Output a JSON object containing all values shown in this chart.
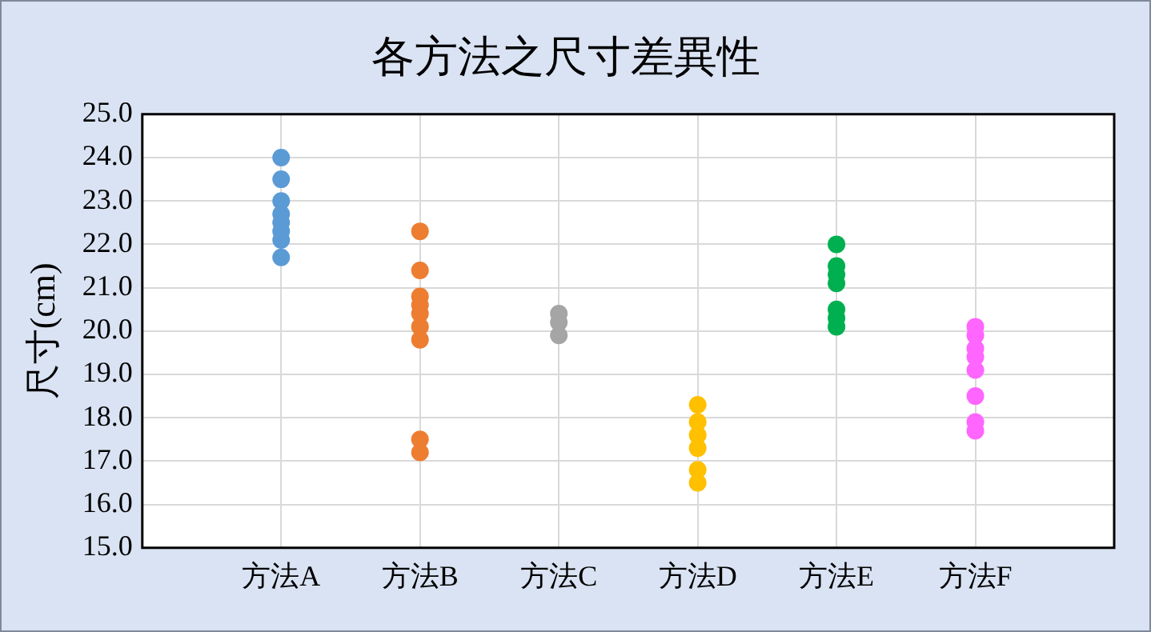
{
  "chart_data": {
    "type": "scatter",
    "title": "各方法之尺寸差異性",
    "ylabel": "尺寸(cm)",
    "categories": [
      "方法A",
      "方法B",
      "方法C",
      "方法D",
      "方法E",
      "方法F"
    ],
    "series": [
      {
        "color": "#5b9bd5",
        "x": [
          "方法A",
          "方法A",
          "方法A",
          "方法A",
          "方法A",
          "方法A",
          "方法A",
          "方法A"
        ],
        "values": [
          24.0,
          23.5,
          23.0,
          22.7,
          22.5,
          22.3,
          22.1,
          21.7
        ]
      },
      {
        "color": "#ed7d31",
        "x": [
          "方法B",
          "方法B",
          "方法B",
          "方法B",
          "方法B",
          "方法B",
          "方法B",
          "方法B",
          "方法B"
        ],
        "values": [
          22.3,
          21.4,
          20.8,
          20.6,
          20.4,
          20.1,
          19.8,
          17.5,
          17.2
        ]
      },
      {
        "color": "#a5a5a5",
        "x": [
          "方法C",
          "方法C",
          "方法C"
        ],
        "values": [
          20.4,
          20.2,
          19.9
        ]
      },
      {
        "color": "#ffc000",
        "x": [
          "方法D",
          "方法D",
          "方法D",
          "方法D",
          "方法D",
          "方法D"
        ],
        "values": [
          18.3,
          17.9,
          17.6,
          17.3,
          16.8,
          16.5
        ]
      },
      {
        "color": "#00b050",
        "x": [
          "方法E",
          "方法E",
          "方法E",
          "方法E",
          "方法E",
          "方法E",
          "方法E"
        ],
        "values": [
          22.0,
          21.5,
          21.3,
          21.1,
          20.5,
          20.3,
          20.1
        ]
      },
      {
        "color": "#ff66ff",
        "x": [
          "方法F",
          "方法F",
          "方法F",
          "方法F",
          "方法F",
          "方法F",
          "方法F",
          "方法F"
        ],
        "values": [
          20.1,
          19.9,
          19.6,
          19.4,
          19.1,
          18.5,
          17.9,
          17.7
        ]
      }
    ],
    "ylim": [
      15,
      25
    ],
    "yticks": [
      {
        "value": 15,
        "label": "15.0"
      },
      {
        "value": 16,
        "label": "16.0"
      },
      {
        "value": 17,
        "label": "17.0"
      },
      {
        "value": 18,
        "label": "18.0"
      },
      {
        "value": 19,
        "label": "19.0"
      },
      {
        "value": 20,
        "label": "20.0"
      },
      {
        "value": 21,
        "label": "21.0"
      },
      {
        "value": 22,
        "label": "22.0"
      },
      {
        "value": 23,
        "label": "23.0"
      },
      {
        "value": 24,
        "label": "24.0"
      },
      {
        "value": 25,
        "label": "25.0"
      }
    ],
    "grid": true,
    "marker": "circle"
  }
}
